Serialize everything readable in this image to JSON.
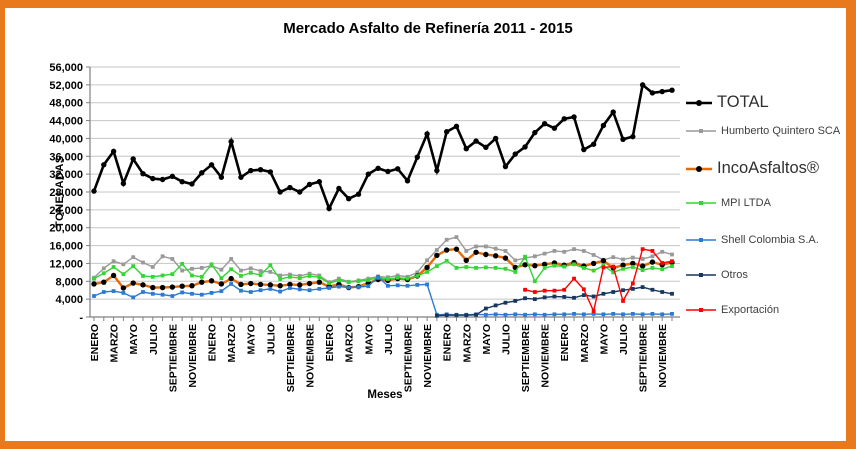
{
  "frame": {
    "border_color": "#E8791D",
    "background": "#FFFFFF"
  },
  "chart_data": {
    "type": "line",
    "title": "Mercado Asfalto de Refinería 2011 - 2015",
    "xlabel": "Meses",
    "ylabel": "TONELADAS",
    "ylim": [
      0,
      56000
    ],
    "grid": "horizontal",
    "legend_position": "right",
    "axis_color": "#808080",
    "grid_color": "#C6C6C6",
    "x_labels": [
      "ENERO",
      "MARZO",
      "MAYO",
      "JULIO",
      "SEPTIEMBRE",
      "NOVIEMBRE",
      "ENERO",
      "MARZO",
      "MAYO",
      "JULIO",
      "SEPTIEMBRE",
      "NOVIEMBRE",
      "ENERO",
      "MARZO",
      "MAYO",
      "JULIO",
      "SEPTIEMBRE",
      "NOVIEMBRE",
      "ENERO",
      "MARZO",
      "MAYO",
      "JULIO",
      "SEPTIEMBRE",
      "NOVIEMBRE",
      "ENERO",
      "MARZO",
      "MAYO",
      "JULIO",
      "SEPTIEMBRE",
      "NOVIEMBRE"
    ],
    "y_ticks": {
      "values": [
        0,
        4000,
        8000,
        12000,
        16000,
        20000,
        24000,
        28000,
        32000,
        36000,
        40000,
        44000,
        48000,
        52000,
        56000
      ],
      "labels": [
        "-",
        "4,000",
        "8,000",
        "12,000",
        "16,000",
        "20,000",
        "24,000",
        "28,000",
        "32,000",
        "36,000",
        "40,000",
        "44,000",
        "48,000",
        "52,000",
        "56,000"
      ]
    },
    "series": [
      {
        "name": "TOTAL",
        "color": "#000000",
        "marker": "circle",
        "marker_color": "#000000",
        "line_width": 2.6,
        "legend_size": "large",
        "values": [
          28200,
          34100,
          37100,
          29900,
          35400,
          32100,
          31000,
          30800,
          31500,
          30300,
          29800,
          32300,
          34100,
          31300,
          39300,
          31300,
          32800,
          33000,
          32500,
          28000,
          29000,
          28000,
          29700,
          30300,
          24300,
          28800,
          26500,
          27500,
          32000,
          33300,
          32600,
          33200,
          30500,
          35800,
          41000,
          32800,
          41500,
          42700,
          37700,
          39400,
          38000,
          40000,
          33700,
          36500,
          38100,
          41300,
          43300,
          42300,
          44400,
          44800,
          37500,
          38700,
          42900,
          45900,
          39800,
          40400,
          52000,
          50200,
          50500,
          50800
        ]
      },
      {
        "name": "Humberto Quintero SCA",
        "color": "#999999",
        "marker": "square",
        "marker_color": "#999999",
        "line_width": 1.4,
        "legend_size": "small",
        "values": [
          8800,
          10900,
          12500,
          11800,
          13400,
          12200,
          11200,
          13600,
          13000,
          10400,
          10800,
          11000,
          11500,
          10600,
          13000,
          10400,
          10900,
          10300,
          10100,
          9300,
          9500,
          9200,
          9700,
          9300,
          7800,
          8600,
          7900,
          8200,
          8600,
          9100,
          8900,
          9300,
          9000,
          10000,
          12700,
          15000,
          17300,
          17900,
          14800,
          15800,
          15800,
          15300,
          14800,
          12700,
          13200,
          13600,
          14200,
          14800,
          14600,
          15200,
          14800,
          13900,
          12800,
          13400,
          12900,
          13300,
          13000,
          13600,
          14600,
          14000
        ]
      },
      {
        "name": "IncoAsfaltos®",
        "color": "#E36C0A",
        "marker": "circle",
        "marker_color": "#000000",
        "line_width": 2.4,
        "legend_size": "large",
        "values": [
          7400,
          7800,
          9300,
          6500,
          7600,
          7200,
          6600,
          6600,
          6700,
          6900,
          7000,
          7800,
          8100,
          7400,
          8600,
          7300,
          7500,
          7300,
          7200,
          7000,
          7300,
          7200,
          7500,
          7800,
          6800,
          7300,
          6600,
          6800,
          7600,
          8400,
          8200,
          8600,
          8400,
          9200,
          11100,
          13800,
          15000,
          15200,
          12700,
          14500,
          14000,
          13700,
          13200,
          11100,
          11700,
          11500,
          11800,
          12100,
          11600,
          12200,
          11400,
          12000,
          12600,
          11000,
          11600,
          12000,
          11400,
          12300,
          11700,
          12200
        ]
      },
      {
        "name": "MPI LTDA",
        "color": "#33D633",
        "marker": "square",
        "marker_color": "#33D633",
        "line_width": 1.4,
        "legend_size": "small",
        "values": [
          8600,
          9800,
          11200,
          9600,
          11400,
          9200,
          9000,
          9300,
          9600,
          11900,
          9300,
          9000,
          11800,
          8700,
          10700,
          9200,
          9900,
          9400,
          11600,
          8500,
          9000,
          8700,
          9200,
          8900,
          7600,
          8200,
          7800,
          8000,
          8300,
          8800,
          8500,
          8800,
          8600,
          9200,
          10100,
          11400,
          12600,
          11000,
          11200,
          11000,
          11100,
          11000,
          10800,
          10100,
          13500,
          8000,
          11000,
          11500,
          11300,
          11800,
          11000,
          10400,
          11500,
          10000,
          10800,
          11200,
          10500,
          11000,
          10700,
          11400
        ]
      },
      {
        "name": "Shell Colombia S.A.",
        "color": "#2B7BD4",
        "marker": "square",
        "marker_color": "#2B7BD4",
        "line_width": 1.4,
        "legend_size": "small",
        "values": [
          4700,
          5600,
          5800,
          5400,
          4400,
          5600,
          5200,
          5000,
          4700,
          5500,
          5200,
          5000,
          5400,
          5800,
          7400,
          5900,
          5600,
          6000,
          6300,
          5700,
          6500,
          6200,
          6000,
          6300,
          6500,
          6800,
          6600,
          6700,
          6900,
          9000,
          7000,
          7100,
          7000,
          7200,
          7300,
          500,
          600,
          500,
          500,
          600,
          500,
          600,
          500,
          600,
          500,
          600,
          500,
          600,
          600,
          700,
          600,
          700,
          600,
          700,
          600,
          700,
          600,
          700,
          600,
          700
        ]
      },
      {
        "name": "Otros",
        "color": "#17375E",
        "marker": "square",
        "marker_color": "#17375E",
        "line_width": 1.4,
        "legend_size": "small",
        "values": [
          null,
          null,
          null,
          null,
          null,
          null,
          null,
          null,
          null,
          null,
          null,
          null,
          null,
          null,
          null,
          null,
          null,
          null,
          null,
          null,
          null,
          null,
          null,
          null,
          null,
          null,
          null,
          null,
          null,
          null,
          null,
          null,
          null,
          null,
          null,
          300,
          400,
          400,
          400,
          500,
          1900,
          2600,
          3200,
          3600,
          4200,
          4000,
          4400,
          4600,
          4500,
          4300,
          4900,
          4600,
          5200,
          5600,
          6000,
          6300,
          6700,
          6100,
          5600,
          5200
        ]
      },
      {
        "name": "Exportación",
        "color": "#FF0000",
        "marker": "square",
        "marker_color": "#FF0000",
        "line_width": 1.4,
        "legend_size": "small",
        "values": [
          null,
          null,
          null,
          null,
          null,
          null,
          null,
          null,
          null,
          null,
          null,
          null,
          null,
          null,
          null,
          null,
          null,
          null,
          null,
          null,
          null,
          null,
          null,
          null,
          null,
          null,
          null,
          null,
          null,
          null,
          null,
          null,
          null,
          null,
          null,
          null,
          null,
          null,
          null,
          null,
          null,
          null,
          null,
          null,
          6100,
          5600,
          5900,
          5900,
          6100,
          8600,
          6200,
          1300,
          11100,
          11300,
          3600,
          7500,
          15200,
          14800,
          12100,
          12500
        ]
      }
    ]
  }
}
